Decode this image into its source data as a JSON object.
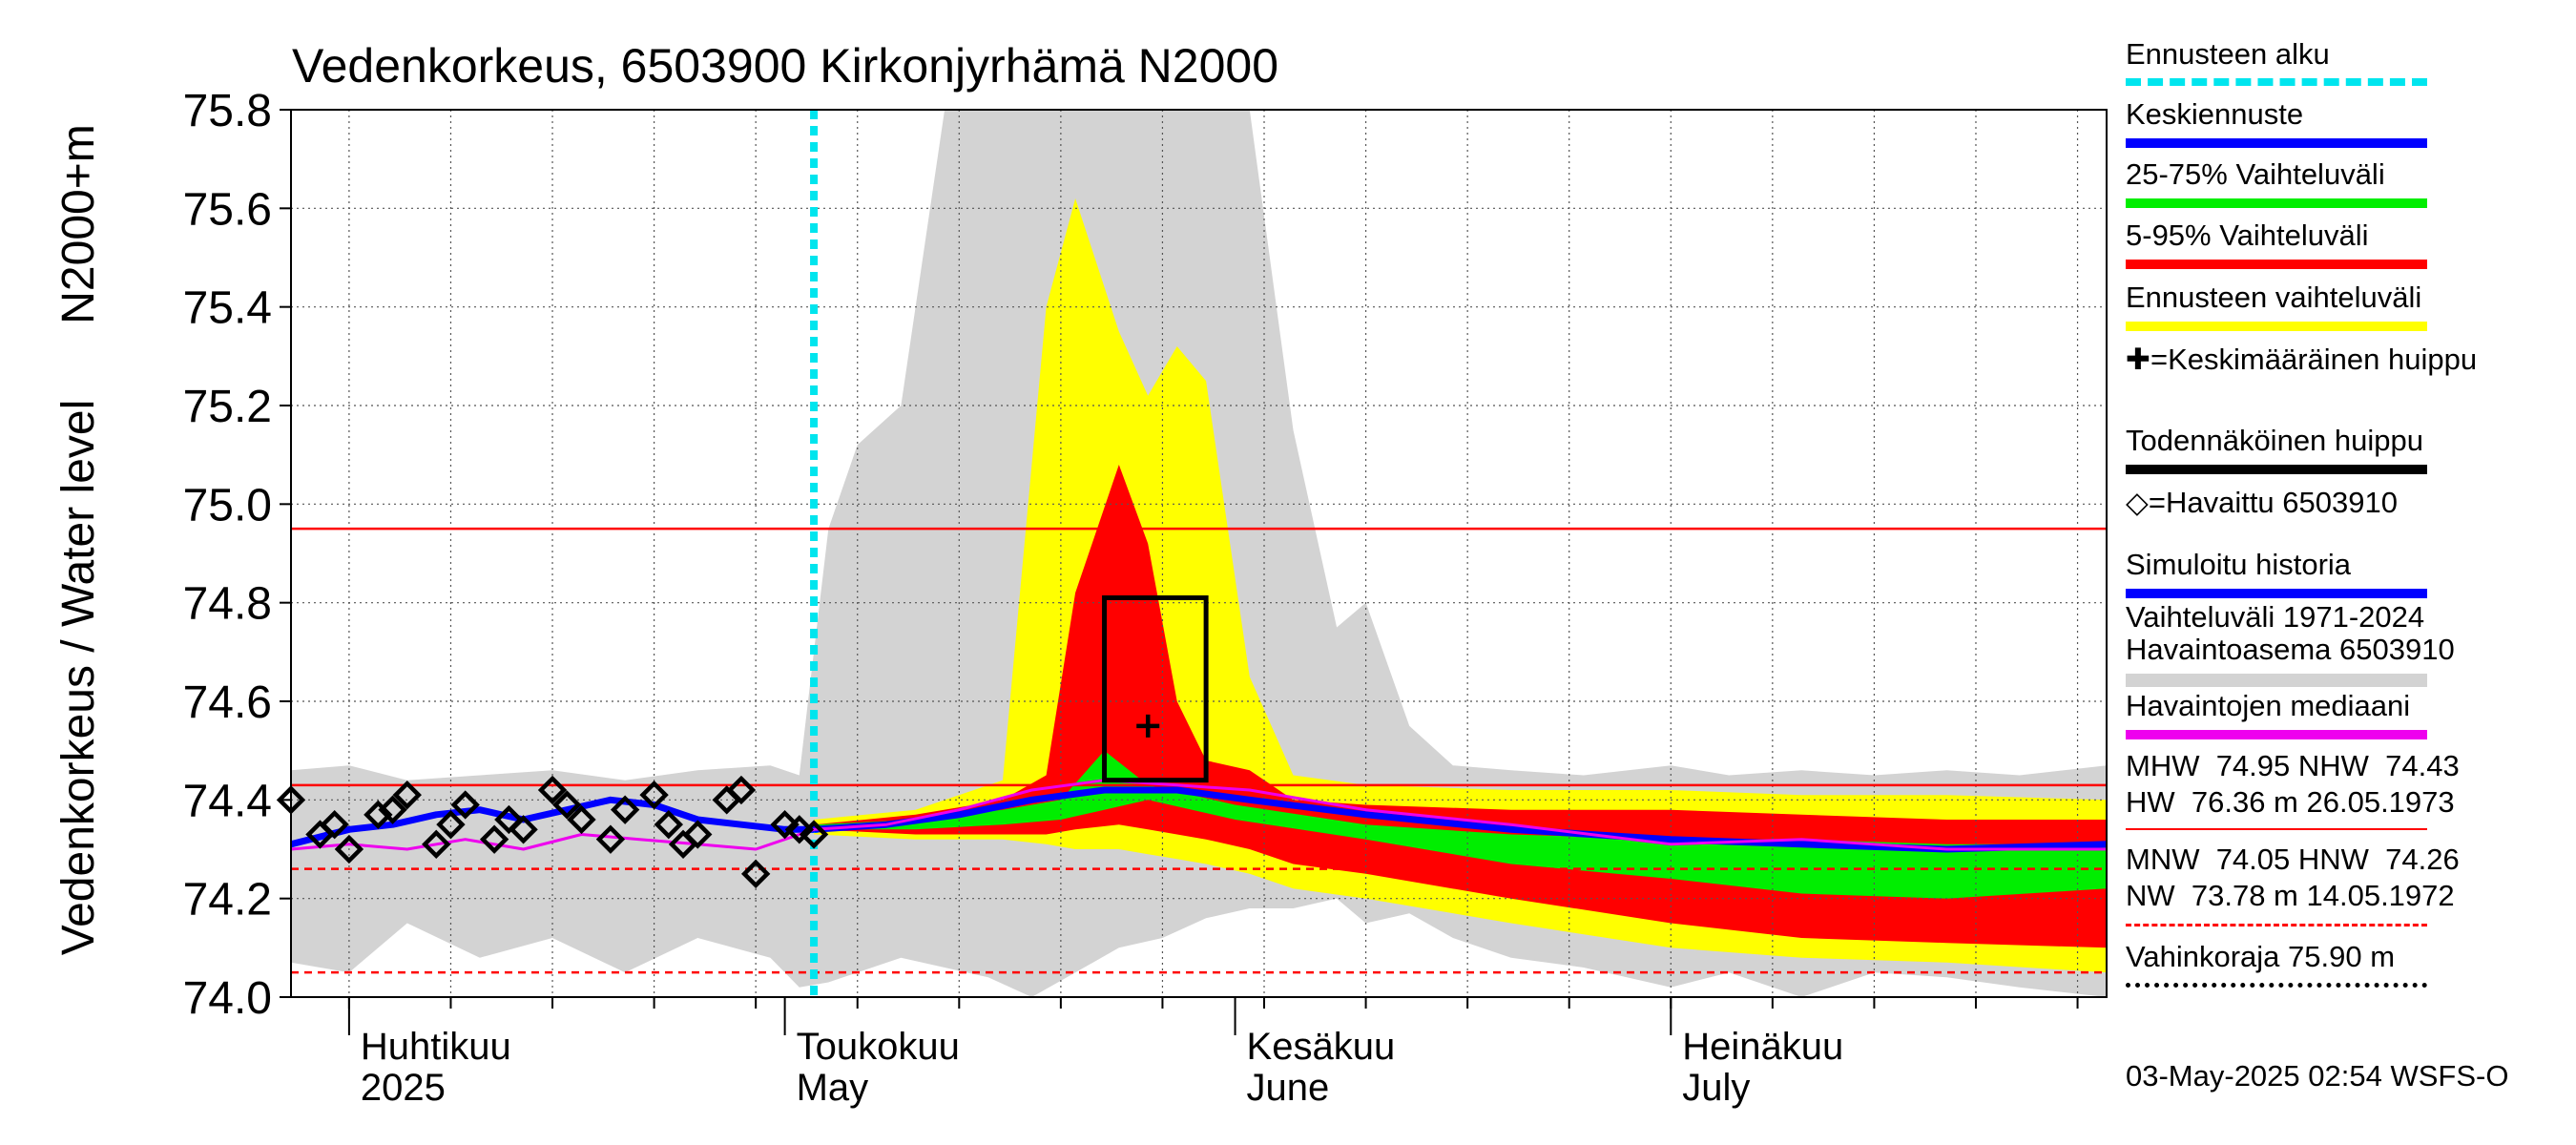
{
  "chart_data": {
    "type": "area",
    "title": "Vedenkorkeus, 6503900 Kirkonjyrhämä N2000",
    "ylabel_left_outer": "Vedenkorkeus / Water level",
    "ylabel_left_inner": "N2000+m",
    "ylim": [
      74.0,
      75.8
    ],
    "yticks": [
      "74.0",
      "74.2",
      "74.4",
      "74.6",
      "74.8",
      "75.0",
      "75.2",
      "75.4",
      "75.6",
      "75.8"
    ],
    "x_range": [
      "2025-03-28",
      "2025-07-31"
    ],
    "x_month_labels": [
      {
        "fi": "Huhtikuu",
        "en": "2025",
        "date": "2025-04-01"
      },
      {
        "fi": "Toukokuu",
        "en": "May",
        "date": "2025-05-01"
      },
      {
        "fi": "Kesäkuu",
        "en": "June",
        "date": "2025-06-01"
      },
      {
        "fi": "Heinäkuu",
        "en": "July",
        "date": "2025-07-01"
      }
    ],
    "forecast_start": "2025-05-03",
    "reference_lines": [
      {
        "name": "MHW",
        "value": 74.95,
        "style": "solid",
        "color": "#ff0000"
      },
      {
        "name": "NHW",
        "value": 74.43,
        "style": "solid",
        "color": "#ff0000"
      },
      {
        "name": "MNW",
        "value": 74.05,
        "style": "dashed",
        "color": "#ff0000"
      },
      {
        "name": "HNW",
        "value": 74.26,
        "style": "dashed",
        "color": "#ff0000"
      }
    ],
    "probable_peak_box": {
      "x_start": "2025-05-23",
      "x_end": "2025-05-30",
      "y_low": 74.44,
      "y_high": 74.81
    },
    "mean_peak": {
      "x": "2025-05-26",
      "y": 74.55
    },
    "history_band": {
      "name": "Vaihteluväli 1971-2024 Havaintoasema 6503910",
      "color": "#d3d3d3",
      "x": [
        "2025-03-28",
        "2025-04-01",
        "2025-04-05",
        "2025-04-10",
        "2025-04-15",
        "2025-04-20",
        "2025-04-25",
        "2025-04-30",
        "2025-05-02",
        "2025-05-04",
        "2025-05-06",
        "2025-05-09",
        "2025-05-12",
        "2025-05-15",
        "2025-05-18",
        "2025-05-21",
        "2025-05-24",
        "2025-05-27",
        "2025-05-30",
        "2025-06-02",
        "2025-06-05",
        "2025-06-08",
        "2025-06-10",
        "2025-06-13",
        "2025-06-16",
        "2025-06-20",
        "2025-06-25",
        "2025-07-01",
        "2025-07-05",
        "2025-07-10",
        "2025-07-15",
        "2025-07-20",
        "2025-07-25",
        "2025-07-31"
      ],
      "low": [
        74.07,
        74.05,
        74.15,
        74.08,
        74.12,
        74.05,
        74.12,
        74.08,
        74.02,
        74.03,
        74.05,
        74.08,
        74.06,
        74.04,
        74.0,
        74.05,
        74.1,
        74.12,
        74.16,
        74.18,
        74.18,
        74.2,
        74.15,
        74.17,
        74.12,
        74.08,
        74.06,
        74.02,
        74.05,
        74.0,
        74.05,
        74.04,
        74.02,
        74.0
      ],
      "high": [
        74.46,
        74.47,
        74.44,
        74.45,
        74.46,
        74.44,
        74.46,
        74.47,
        74.45,
        74.95,
        75.12,
        75.2,
        75.8,
        75.8,
        75.8,
        75.8,
        75.8,
        75.8,
        75.8,
        75.8,
        75.15,
        74.75,
        74.8,
        74.55,
        74.47,
        74.46,
        74.45,
        74.47,
        74.45,
        74.46,
        74.45,
        74.46,
        74.45,
        74.47
      ]
    },
    "series": [
      {
        "name": "Ennusteen vaihteluväli",
        "color": "#ffff00",
        "x": [
          "2025-05-03",
          "2025-05-10",
          "2025-05-16",
          "2025-05-19",
          "2025-05-21",
          "2025-05-24",
          "2025-05-26",
          "2025-05-28",
          "2025-05-30",
          "2025-06-02",
          "2025-06-05",
          "2025-06-10",
          "2025-06-20",
          "2025-07-01",
          "2025-07-10",
          "2025-07-20",
          "2025-07-31"
        ],
        "low": [
          74.33,
          74.32,
          74.32,
          74.31,
          74.3,
          74.3,
          74.29,
          74.28,
          74.27,
          74.25,
          74.22,
          74.2,
          74.15,
          74.1,
          74.08,
          74.07,
          74.05
        ],
        "high": [
          74.36,
          74.38,
          74.44,
          75.4,
          75.62,
          75.35,
          75.22,
          75.32,
          75.25,
          74.65,
          74.45,
          74.43,
          74.42,
          74.42,
          74.41,
          74.41,
          74.4
        ]
      },
      {
        "name": "5-95% Vaihteluväli",
        "color": "#ff0000",
        "x": [
          "2025-05-03",
          "2025-05-10",
          "2025-05-16",
          "2025-05-19",
          "2025-05-21",
          "2025-05-24",
          "2025-05-26",
          "2025-05-28",
          "2025-05-30",
          "2025-06-02",
          "2025-06-05",
          "2025-06-10",
          "2025-06-20",
          "2025-07-01",
          "2025-07-10",
          "2025-07-20",
          "2025-07-31"
        ],
        "low": [
          74.34,
          74.33,
          74.33,
          74.33,
          74.34,
          74.35,
          74.34,
          74.33,
          74.32,
          74.3,
          74.27,
          74.25,
          74.2,
          74.15,
          74.12,
          74.11,
          74.1
        ],
        "high": [
          74.35,
          74.37,
          74.4,
          74.45,
          74.82,
          75.08,
          74.92,
          74.6,
          74.48,
          74.46,
          74.4,
          74.39,
          74.38,
          74.38,
          74.37,
          74.36,
          74.36
        ]
      },
      {
        "name": "25-75% Vaihteluväli",
        "color": "#00ee00",
        "x": [
          "2025-05-03",
          "2025-05-10",
          "2025-05-16",
          "2025-05-20",
          "2025-05-23",
          "2025-05-26",
          "2025-06-01",
          "2025-06-10",
          "2025-06-20",
          "2025-07-01",
          "2025-07-10",
          "2025-07-20",
          "2025-07-31"
        ],
        "low": [
          74.34,
          74.34,
          74.35,
          74.36,
          74.38,
          74.4,
          74.36,
          74.32,
          74.27,
          74.24,
          74.21,
          74.2,
          74.22
        ],
        "high": [
          74.35,
          74.36,
          74.38,
          74.4,
          74.5,
          74.43,
          74.39,
          74.35,
          74.33,
          74.32,
          74.32,
          74.31,
          74.31
        ]
      },
      {
        "name": "Keskiennuste",
        "color": "#0000ff",
        "x": [
          "2025-05-03",
          "2025-05-08",
          "2025-05-13",
          "2025-05-18",
          "2025-05-23",
          "2025-05-28",
          "2025-06-02",
          "2025-06-10",
          "2025-06-20",
          "2025-07-01",
          "2025-07-10",
          "2025-07-20",
          "2025-07-31"
        ],
        "values": [
          74.34,
          74.35,
          74.37,
          74.4,
          74.42,
          74.42,
          74.4,
          74.37,
          74.34,
          74.32,
          74.31,
          74.3,
          74.31
        ]
      },
      {
        "name": "Simuloitu historia",
        "color": "#0000ff",
        "x": [
          "2025-03-28",
          "2025-04-01",
          "2025-04-04",
          "2025-04-07",
          "2025-04-10",
          "2025-04-13",
          "2025-04-16",
          "2025-04-19",
          "2025-04-22",
          "2025-04-25",
          "2025-04-28",
          "2025-05-01",
          "2025-05-03"
        ],
        "values": [
          74.31,
          74.34,
          74.35,
          74.37,
          74.38,
          74.36,
          74.38,
          74.4,
          74.39,
          74.36,
          74.35,
          74.34,
          74.34
        ]
      },
      {
        "name": "Havaintojen mediaani",
        "color": "#ee00ee",
        "x": [
          "2025-03-28",
          "2025-04-01",
          "2025-04-05",
          "2025-04-09",
          "2025-04-13",
          "2025-04-17",
          "2025-04-21",
          "2025-04-25",
          "2025-04-29",
          "2025-05-03",
          "2025-05-08",
          "2025-05-13",
          "2025-05-18",
          "2025-05-23",
          "2025-05-28",
          "2025-06-02",
          "2025-06-10",
          "2025-06-20",
          "2025-07-01",
          "2025-07-10",
          "2025-07-20",
          "2025-07-31"
        ],
        "values": [
          74.3,
          74.31,
          74.3,
          74.32,
          74.3,
          74.33,
          74.32,
          74.31,
          74.3,
          74.34,
          74.35,
          74.38,
          74.42,
          74.44,
          74.43,
          74.42,
          74.38,
          74.35,
          74.31,
          74.32,
          74.3,
          74.3
        ]
      },
      {
        "name": "Havaittu 6503910",
        "color": "#000000",
        "x": [
          "2025-03-28",
          "2025-03-30",
          "2025-03-31",
          "2025-04-01",
          "2025-04-03",
          "2025-04-04",
          "2025-04-05",
          "2025-04-07",
          "2025-04-08",
          "2025-04-09",
          "2025-04-11",
          "2025-04-12",
          "2025-04-13",
          "2025-04-15",
          "2025-04-16",
          "2025-04-17",
          "2025-04-19",
          "2025-04-20",
          "2025-04-22",
          "2025-04-23",
          "2025-04-24",
          "2025-04-25",
          "2025-04-27",
          "2025-04-28",
          "2025-04-29",
          "2025-05-01",
          "2025-05-02",
          "2025-05-03"
        ],
        "values": [
          74.4,
          74.33,
          74.35,
          74.3,
          74.37,
          74.38,
          74.41,
          74.31,
          74.35,
          74.39,
          74.32,
          74.36,
          74.34,
          74.42,
          74.39,
          74.36,
          74.32,
          74.38,
          74.41,
          74.35,
          74.31,
          74.33,
          74.4,
          74.42,
          74.25,
          74.35,
          74.34,
          74.33
        ]
      }
    ]
  },
  "legend": {
    "items": [
      {
        "label": "Ennusteen alku",
        "color": "#00e5ee",
        "style": "dotted"
      },
      {
        "label": "Keskiennuste",
        "color": "#0000ff",
        "style": "solid"
      },
      {
        "label": "25-75% Vaihteluväli",
        "color": "#00ee00",
        "style": "solid"
      },
      {
        "label": "5-95% Vaihteluväli",
        "color": "#ff0000",
        "style": "solid"
      },
      {
        "label": "Ennusteen vaihteluväli",
        "color": "#ffff00",
        "style": "solid"
      },
      {
        "label": "✚=Keskimääräinen huippu",
        "color": "",
        "style": "none"
      },
      {
        "label": "Todennäköinen huippu",
        "color": "#000000",
        "style": "solid"
      },
      {
        "label": "◇=Havaittu 6503910",
        "color": "",
        "style": "none"
      },
      {
        "label": "Simuloitu historia",
        "color": "#0000ff",
        "style": "solid"
      },
      {
        "label": "Vaihteluväli 1971-2024\n Havaintoasema 6503910",
        "color": "#d3d3d3",
        "style": "solid"
      },
      {
        "label": "Havaintojen mediaani",
        "color": "#ee00ee",
        "style": "solid"
      }
    ]
  },
  "stats": {
    "high_line1": "MHW  74.95 NHW  74.43",
    "high_line2": "HW  76.36 m 26.05.1973",
    "low_line1": "MNW  74.05 HNW  74.26",
    "low_line2": "NW  73.78 m 14.05.1972",
    "damage_limit": "Vahinkoraja 75.90 m"
  },
  "timestamp": "03-May-2025 02:54 WSFS-O"
}
